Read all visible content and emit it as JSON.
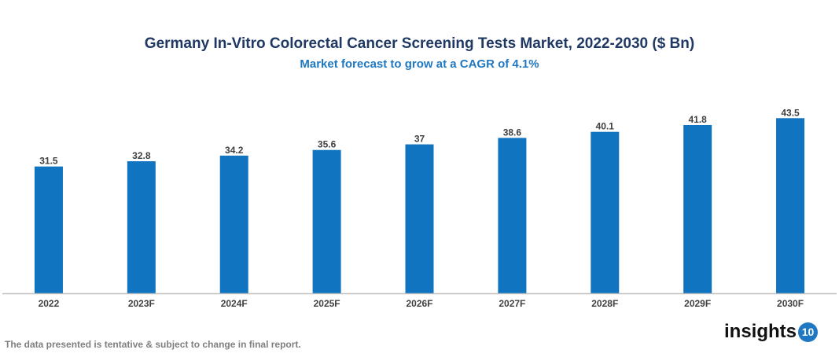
{
  "chart_data": {
    "type": "bar",
    "title": "Germany In-Vitro Colorectal Cancer Screening Tests Market, 2022-2030 ($ Bn)",
    "subtitle": "Market forecast to grow at a CAGR of 4.1%",
    "categories": [
      "2022",
      "2023F",
      "2024F",
      "2025F",
      "2026F",
      "2027F",
      "2028F",
      "2029F",
      "2030F"
    ],
    "values": [
      31.5,
      32.8,
      34.2,
      35.6,
      37,
      38.6,
      40.1,
      41.8,
      43.5
    ],
    "ylim": [
      0,
      50
    ],
    "grid": false,
    "bar_color": "#1174c0"
  },
  "footer": {
    "note": "The data presented is tentative & subject to change in final report."
  },
  "logo": {
    "text": "insights",
    "badge": "10"
  }
}
